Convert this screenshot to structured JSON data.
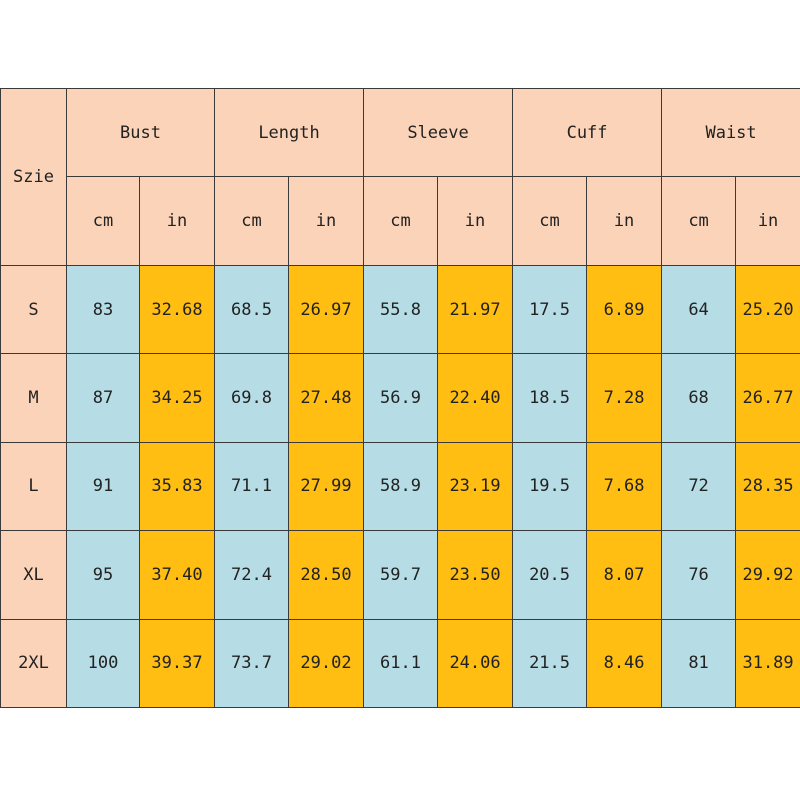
{
  "table": {
    "size_header": "Szie",
    "groups": [
      "Bust",
      "Length",
      "Sleeve",
      "Cuff",
      "Waist"
    ],
    "units": [
      "cm",
      "in",
      "cm",
      "in",
      "cm",
      "in",
      "cm",
      "in",
      "cm",
      "in"
    ],
    "rows": [
      {
        "size": "S",
        "values": [
          "83",
          "32.68",
          "68.5",
          "26.97",
          "55.8",
          "21.97",
          "17.5",
          "6.89",
          "64",
          "25.20"
        ]
      },
      {
        "size": "M",
        "values": [
          "87",
          "34.25",
          "69.8",
          "27.48",
          "56.9",
          "22.40",
          "18.5",
          "7.28",
          "68",
          "26.77"
        ]
      },
      {
        "size": "L",
        "values": [
          "91",
          "35.83",
          "71.1",
          "27.99",
          "58.9",
          "23.19",
          "19.5",
          "7.68",
          "72",
          "28.35"
        ]
      },
      {
        "size": "XL",
        "values": [
          "95",
          "37.40",
          "72.4",
          "28.50",
          "59.7",
          "23.50",
          "20.5",
          "8.07",
          "76",
          "29.92"
        ]
      },
      {
        "size": "2XL",
        "values": [
          "100",
          "39.37",
          "73.7",
          "29.02",
          "61.1",
          "24.06",
          "21.5",
          "8.46",
          "81",
          "31.89"
        ]
      }
    ]
  },
  "colors": {
    "header_background": "#fbd3b8",
    "cm_cell_background": "#b6dde6",
    "in_cell_background": "#ffbe11",
    "border": "#3a3a3a"
  }
}
